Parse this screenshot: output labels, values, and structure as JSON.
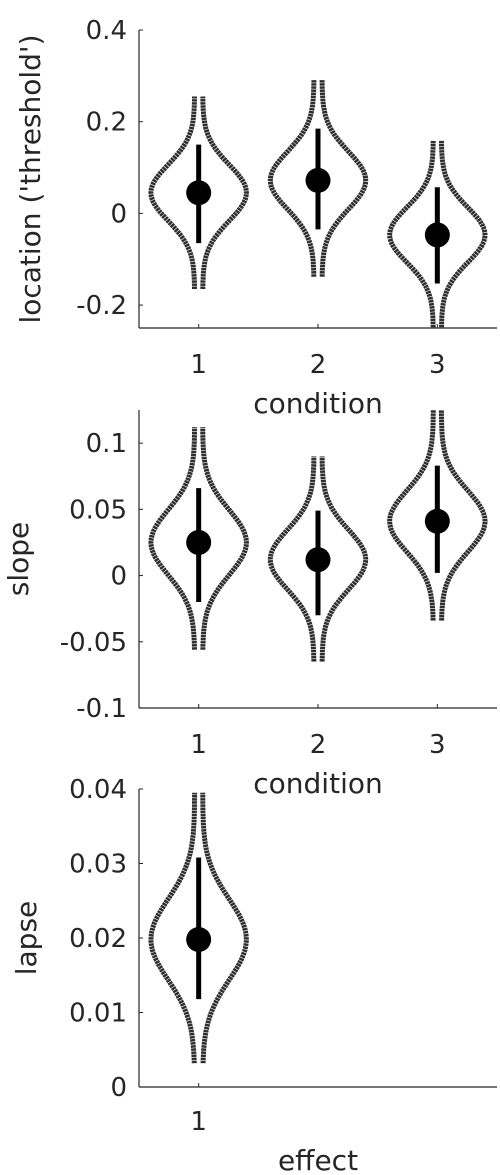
{
  "chart_data": [
    {
      "type": "violin",
      "xlabel": "condition",
      "ylabel": "location ('threshold')",
      "xlim": [
        0.5,
        3.5
      ],
      "ylim": [
        -0.25,
        0.4
      ],
      "x_ticks": [
        "1",
        "2",
        "3"
      ],
      "y_ticks": [
        "0.4",
        "0.2",
        "0",
        "-0.2"
      ],
      "y_tick_values": [
        0.4,
        0.2,
        0,
        -0.2
      ],
      "points": [
        {
          "x": 1,
          "y": 0.045,
          "lower": -0.065,
          "upper": 0.15,
          "violin_min": -0.165,
          "violin_max": 0.255
        },
        {
          "x": 2,
          "y": 0.072,
          "lower": -0.035,
          "upper": 0.185,
          "violin_min": -0.138,
          "violin_max": 0.292
        },
        {
          "x": 3,
          "y": -0.047,
          "lower": -0.153,
          "upper": 0.057,
          "violin_min": -0.255,
          "violin_max": 0.158
        }
      ],
      "grid": false
    },
    {
      "type": "violin",
      "xlabel": "condition",
      "ylabel": "slope",
      "xlim": [
        0.5,
        3.5
      ],
      "ylim": [
        -0.1,
        0.125
      ],
      "x_ticks": [
        "1",
        "2",
        "3"
      ],
      "y_ticks": [
        "0.1",
        "0.05",
        "0",
        "-0.05",
        "-0.1"
      ],
      "y_tick_values": [
        0.1,
        0.05,
        0,
        -0.05,
        -0.1
      ],
      "points": [
        {
          "x": 1,
          "y": 0.025,
          "lower": -0.02,
          "upper": 0.066,
          "violin_min": -0.056,
          "violin_max": 0.112
        },
        {
          "x": 2,
          "y": 0.012,
          "lower": -0.03,
          "upper": 0.049,
          "violin_min": -0.065,
          "violin_max": 0.09
        },
        {
          "x": 3,
          "y": 0.041,
          "lower": 0.002,
          "upper": 0.083,
          "violin_min": -0.034,
          "violin_max": 0.127
        }
      ],
      "grid": false
    },
    {
      "type": "violin",
      "xlabel": "effect",
      "ylabel": "lapse",
      "xlim": [
        0.5,
        3.5
      ],
      "ylim": [
        0,
        0.04
      ],
      "x_ticks": [
        "1"
      ],
      "y_ticks": [
        "0.04",
        "0.03",
        "0.02",
        "0.01",
        "0"
      ],
      "y_tick_values": [
        0.04,
        0.03,
        0.02,
        0.01,
        0
      ],
      "points": [
        {
          "x": 1,
          "y": 0.0198,
          "lower": 0.0118,
          "upper": 0.0308,
          "violin_min": 0.0032,
          "violin_max": 0.0395
        }
      ],
      "grid": false
    }
  ]
}
